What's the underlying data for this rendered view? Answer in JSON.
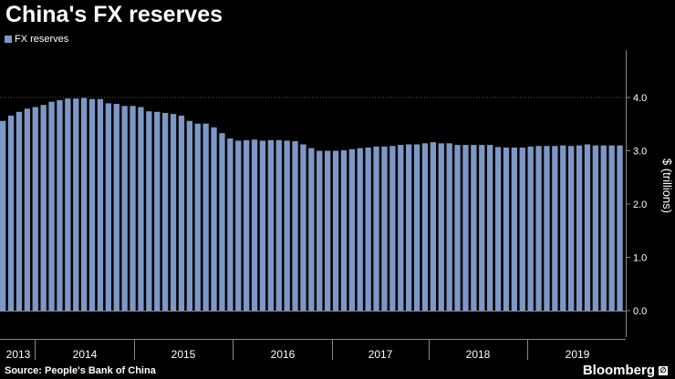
{
  "title": "China's FX reserves",
  "source": "Source: People's Bank of China",
  "brand": "Bloomberg",
  "colors": {
    "bar": "#7d98c6",
    "background": "#000000",
    "grid": "#555555",
    "text": "#ffffff"
  },
  "chart_data": {
    "type": "bar",
    "series": [
      {
        "name": "FX reserves",
        "color": "#7d98c6"
      }
    ],
    "y_axis_label": "$ (trillions)",
    "y_ticks": [
      "0.0",
      "1.0",
      "2.0",
      "3.0",
      "4.0"
    ],
    "ylim": [
      0,
      4.9
    ],
    "x_year_labels": [
      "2013",
      "2014",
      "2015",
      "2016",
      "2017",
      "2018",
      "2019"
    ],
    "values": [
      3.56,
      3.66,
      3.73,
      3.79,
      3.82,
      3.86,
      3.92,
      3.95,
      3.98,
      3.98,
      3.99,
      3.97,
      3.97,
      3.89,
      3.88,
      3.84,
      3.84,
      3.82,
      3.74,
      3.73,
      3.71,
      3.69,
      3.66,
      3.56,
      3.51,
      3.51,
      3.44,
      3.33,
      3.23,
      3.19,
      3.2,
      3.21,
      3.19,
      3.2,
      3.2,
      3.19,
      3.18,
      3.12,
      3.05,
      3.0,
      3.0,
      3.0,
      3.01,
      3.03,
      3.05,
      3.06,
      3.08,
      3.08,
      3.09,
      3.11,
      3.12,
      3.12,
      3.14,
      3.16,
      3.14,
      3.14,
      3.11,
      3.11,
      3.11,
      3.11,
      3.11,
      3.07,
      3.06,
      3.06,
      3.06,
      3.08,
      3.09,
      3.09,
      3.09,
      3.1,
      3.09,
      3.1,
      3.12,
      3.1,
      3.1,
      3.1,
      3.1
    ]
  }
}
